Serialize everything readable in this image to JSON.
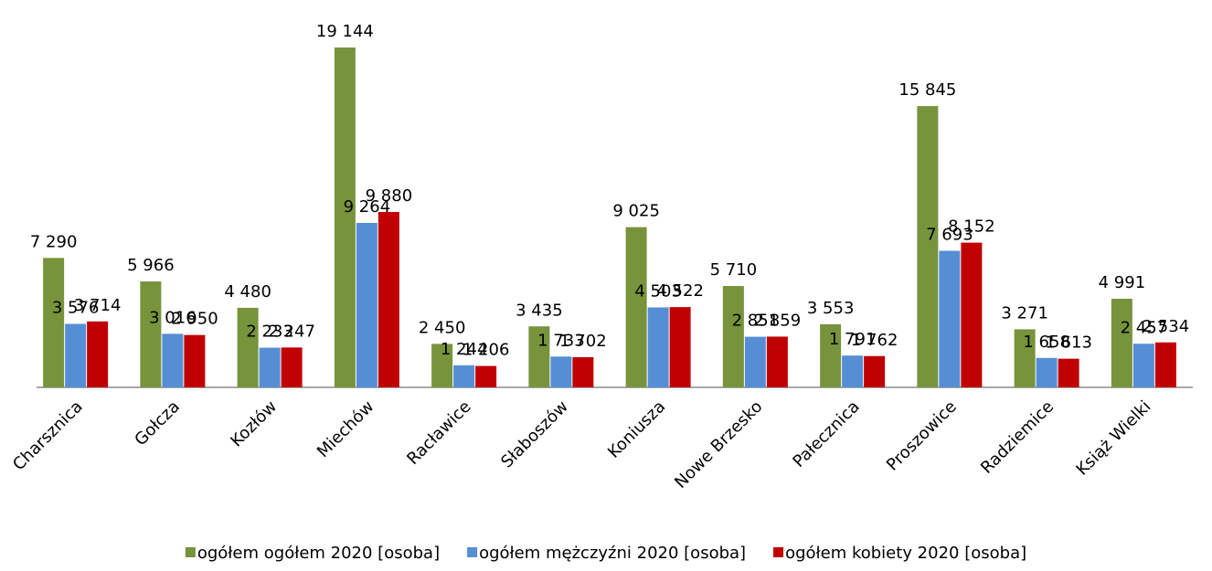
{
  "chart_data": {
    "type": "bar",
    "categories": [
      "Charsznica",
      "Gołcza",
      "Kozłów",
      "Miechów",
      "Racławice",
      "Słaboszów",
      "Koniusza",
      "Nowe Brzesko",
      "Pałecznica",
      "Proszowice",
      "Radziemice",
      "Książ Wielki"
    ],
    "series": [
      {
        "name": "ogółem ogółem 2020 [osoba]",
        "color": "#77933c",
        "values": [
          7290,
          5966,
          4480,
          19144,
          2450,
          3435,
          9025,
          5710,
          3553,
          15845,
          3271,
          4991
        ],
        "value_labels": [
          "7 290",
          "5 966",
          "4 480",
          "19 144",
          "2 450",
          "3 435",
          "9 025",
          "5 710",
          "3 553",
          "15 845",
          "3 271",
          "4 991"
        ]
      },
      {
        "name": "ogółem mężczyźni 2020 [osoba]",
        "color": "#558ed5",
        "values": [
          3576,
          3016,
          2233,
          9264,
          1244,
          1733,
          4503,
          2851,
          1791,
          7693,
          1658,
          2457
        ],
        "value_labels": [
          "3 576",
          "3 016",
          "2 233",
          "9 264",
          "1 244",
          "1 733",
          "4 503",
          "2 851",
          "1 791",
          "7 693",
          "1 658",
          "2 457"
        ]
      },
      {
        "name": "ogółem kobiety 2020 [osoba]",
        "color": "#c00000",
        "values": [
          3714,
          2950,
          2247,
          9880,
          1206,
          1702,
          4522,
          2859,
          1762,
          8152,
          1613,
          2534
        ],
        "value_labels": [
          "3 714",
          "2 950",
          "2 247",
          "9 880",
          "1 206",
          "1 702",
          "4 522",
          "2 859",
          "1 762",
          "8 152",
          "1 613",
          "2 534"
        ]
      }
    ]
  }
}
